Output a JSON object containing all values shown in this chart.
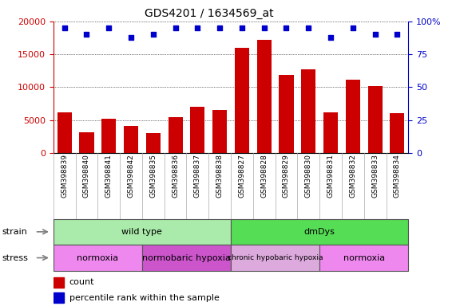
{
  "title": "GDS4201 / 1634569_at",
  "categories": [
    "GSM398839",
    "GSM398840",
    "GSM398841",
    "GSM398842",
    "GSM398835",
    "GSM398836",
    "GSM398837",
    "GSM398838",
    "GSM398827",
    "GSM398828",
    "GSM398829",
    "GSM398830",
    "GSM398831",
    "GSM398832",
    "GSM398833",
    "GSM398834"
  ],
  "bar_values": [
    6200,
    3200,
    5200,
    4100,
    3000,
    5500,
    7000,
    6500,
    16000,
    17200,
    11900,
    12700,
    6200,
    11100,
    10200,
    6100
  ],
  "percentile_values": [
    95,
    90,
    95,
    88,
    90,
    95,
    95,
    95,
    95,
    95,
    95,
    95,
    88,
    95,
    90,
    90
  ],
  "bar_color": "#cc0000",
  "dot_color": "#0000cc",
  "ylim_left": [
    0,
    20000
  ],
  "ylim_right": [
    0,
    100
  ],
  "yticks_left": [
    0,
    5000,
    10000,
    15000,
    20000
  ],
  "yticks_right": [
    0,
    25,
    50,
    75,
    100
  ],
  "strain_groups": [
    {
      "label": "wild type",
      "start": 0,
      "end": 8,
      "color": "#aaeaaa"
    },
    {
      "label": "dmDys",
      "start": 8,
      "end": 16,
      "color": "#55dd55"
    }
  ],
  "stress_groups": [
    {
      "label": "normoxia",
      "start": 0,
      "end": 4,
      "color": "#ee88ee"
    },
    {
      "label": "normobaric hypoxia",
      "start": 4,
      "end": 8,
      "color": "#cc55cc"
    },
    {
      "label": "chronic hypobaric hypoxia",
      "start": 8,
      "end": 12,
      "color": "#ddaadd"
    },
    {
      "label": "normoxia",
      "start": 12,
      "end": 16,
      "color": "#ee88ee"
    }
  ],
  "legend_count_label": "count",
  "legend_percentile_label": "percentile rank within the sample",
  "strain_label": "strain",
  "stress_label": "stress",
  "bg_color": "#e8e8e8"
}
